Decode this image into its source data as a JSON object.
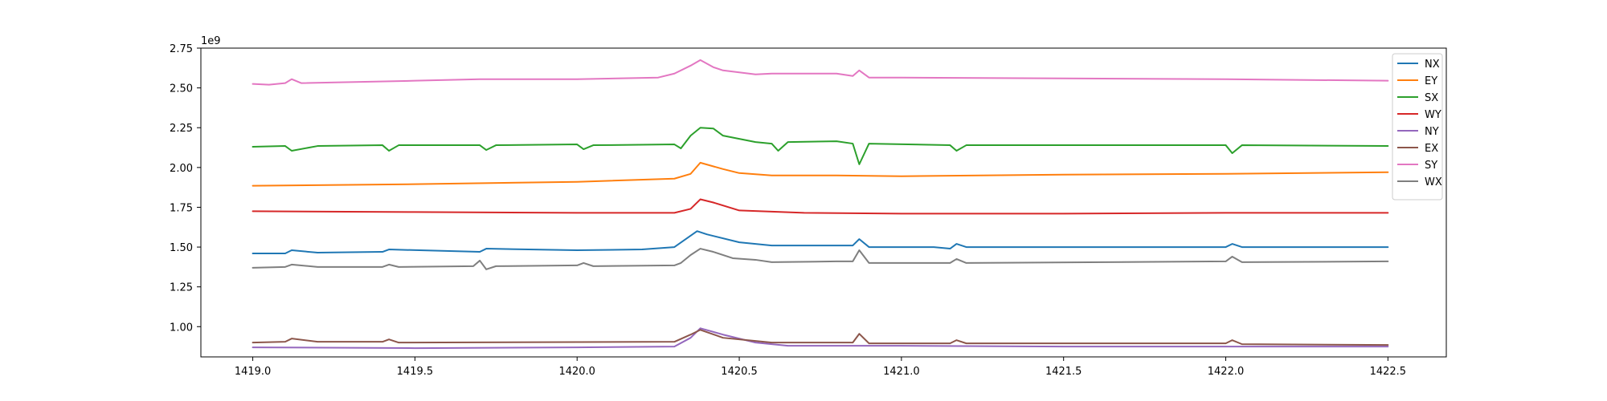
{
  "chart_data": {
    "type": "line",
    "title": "",
    "xlabel": "",
    "ylabel": "",
    "y_offset_label": "1e9",
    "xlim": [
      1418.84,
      1422.68
    ],
    "ylim": [
      0.81,
      2.75
    ],
    "xticks": [
      1419.0,
      1419.5,
      1420.0,
      1420.5,
      1421.0,
      1421.5,
      1422.0,
      1422.5
    ],
    "xtick_labels": [
      "1419.0",
      "1419.5",
      "1420.0",
      "1420.5",
      "1421.0",
      "1421.5",
      "1422.0",
      "1422.5"
    ],
    "yticks": [
      1.0,
      1.25,
      1.5,
      1.75,
      2.0,
      2.25,
      2.5,
      2.75
    ],
    "ytick_labels": [
      "1.00",
      "1.25",
      "1.50",
      "1.75",
      "2.00",
      "2.25",
      "2.50",
      "2.75"
    ],
    "grid": false,
    "legend_position": "top-right",
    "series": [
      {
        "name": "NX",
        "color": "#1f77b4",
        "x": [
          1419.0,
          1419.1,
          1419.12,
          1419.2,
          1419.4,
          1419.42,
          1419.7,
          1419.72,
          1420.0,
          1420.2,
          1420.3,
          1420.37,
          1420.4,
          1420.5,
          1420.55,
          1420.6,
          1420.8,
          1420.85,
          1420.87,
          1420.9,
          1421.1,
          1421.15,
          1421.17,
          1421.2,
          1421.5,
          1422.0,
          1422.02,
          1422.05,
          1422.5
        ],
        "y": [
          1.46,
          1.46,
          1.48,
          1.465,
          1.47,
          1.485,
          1.47,
          1.49,
          1.48,
          1.485,
          1.5,
          1.6,
          1.58,
          1.53,
          1.52,
          1.51,
          1.51,
          1.51,
          1.55,
          1.5,
          1.5,
          1.49,
          1.52,
          1.5,
          1.5,
          1.5,
          1.52,
          1.5,
          1.5
        ]
      },
      {
        "name": "EY",
        "color": "#ff7f0e",
        "x": [
          1419.0,
          1419.5,
          1420.0,
          1420.3,
          1420.35,
          1420.38,
          1420.45,
          1420.5,
          1420.6,
          1420.8,
          1421.0,
          1421.5,
          1422.0,
          1422.5
        ],
        "y": [
          1.885,
          1.895,
          1.91,
          1.93,
          1.96,
          2.03,
          1.99,
          1.965,
          1.95,
          1.95,
          1.945,
          1.955,
          1.96,
          1.97
        ]
      },
      {
        "name": "SX",
        "color": "#2ca02c",
        "x": [
          1419.0,
          1419.1,
          1419.12,
          1419.2,
          1419.4,
          1419.42,
          1419.45,
          1419.7,
          1419.72,
          1419.75,
          1420.0,
          1420.02,
          1420.05,
          1420.3,
          1420.32,
          1420.35,
          1420.38,
          1420.42,
          1420.45,
          1420.55,
          1420.6,
          1420.62,
          1420.65,
          1420.8,
          1420.85,
          1420.87,
          1420.9,
          1421.15,
          1421.17,
          1421.2,
          1421.5,
          1422.0,
          1422.02,
          1422.05,
          1422.5
        ],
        "y": [
          2.13,
          2.135,
          2.105,
          2.135,
          2.14,
          2.105,
          2.14,
          2.14,
          2.11,
          2.14,
          2.145,
          2.115,
          2.14,
          2.145,
          2.12,
          2.2,
          2.25,
          2.245,
          2.2,
          2.16,
          2.15,
          2.105,
          2.16,
          2.165,
          2.15,
          2.02,
          2.15,
          2.14,
          2.105,
          2.14,
          2.14,
          2.14,
          2.09,
          2.14,
          2.135
        ]
      },
      {
        "name": "WY",
        "color": "#d62728",
        "x": [
          1419.0,
          1419.5,
          1420.0,
          1420.3,
          1420.35,
          1420.38,
          1420.42,
          1420.5,
          1420.7,
          1421.0,
          1421.5,
          1422.0,
          1422.5
        ],
        "y": [
          1.725,
          1.72,
          1.715,
          1.715,
          1.74,
          1.8,
          1.78,
          1.73,
          1.715,
          1.71,
          1.71,
          1.715,
          1.715
        ]
      },
      {
        "name": "NY",
        "color": "#9467bd",
        "x": [
          1419.0,
          1419.5,
          1420.0,
          1420.3,
          1420.35,
          1420.38,
          1420.45,
          1420.55,
          1420.65,
          1420.8,
          1421.0,
          1421.5,
          1422.0,
          1422.5
        ],
        "y": [
          0.87,
          0.865,
          0.87,
          0.875,
          0.93,
          0.99,
          0.95,
          0.9,
          0.88,
          0.88,
          0.88,
          0.875,
          0.875,
          0.875
        ]
      },
      {
        "name": "EX",
        "color": "#8c564b",
        "x": [
          1419.0,
          1419.1,
          1419.12,
          1419.2,
          1419.4,
          1419.42,
          1419.45,
          1420.3,
          1420.35,
          1420.38,
          1420.45,
          1420.55,
          1420.6,
          1420.85,
          1420.87,
          1420.9,
          1421.15,
          1421.17,
          1421.2,
          1422.0,
          1422.02,
          1422.05,
          1422.5
        ],
        "y": [
          0.9,
          0.905,
          0.925,
          0.905,
          0.905,
          0.92,
          0.9,
          0.905,
          0.95,
          0.98,
          0.93,
          0.91,
          0.9,
          0.9,
          0.955,
          0.895,
          0.895,
          0.915,
          0.895,
          0.895,
          0.915,
          0.89,
          0.885
        ]
      },
      {
        "name": "SY",
        "color": "#e377c2",
        "x": [
          1419.0,
          1419.05,
          1419.1,
          1419.12,
          1419.15,
          1419.5,
          1419.7,
          1420.0,
          1420.25,
          1420.3,
          1420.35,
          1420.38,
          1420.42,
          1420.45,
          1420.55,
          1420.6,
          1420.8,
          1420.85,
          1420.87,
          1420.9,
          1421.0,
          1421.5,
          1422.0,
          1422.5
        ],
        "y": [
          2.525,
          2.52,
          2.53,
          2.555,
          2.53,
          2.545,
          2.555,
          2.555,
          2.565,
          2.59,
          2.64,
          2.675,
          2.63,
          2.61,
          2.585,
          2.59,
          2.59,
          2.575,
          2.61,
          2.565,
          2.565,
          2.56,
          2.555,
          2.545
        ]
      },
      {
        "name": "WX",
        "color": "#7f7f7f",
        "x": [
          1419.0,
          1419.1,
          1419.12,
          1419.2,
          1419.4,
          1419.42,
          1419.45,
          1419.68,
          1419.7,
          1419.72,
          1419.75,
          1420.0,
          1420.02,
          1420.05,
          1420.3,
          1420.32,
          1420.35,
          1420.38,
          1420.42,
          1420.48,
          1420.55,
          1420.6,
          1420.8,
          1420.85,
          1420.87,
          1420.9,
          1421.15,
          1421.17,
          1421.2,
          1422.0,
          1422.02,
          1422.05,
          1422.5
        ],
        "y": [
          1.37,
          1.375,
          1.39,
          1.375,
          1.375,
          1.39,
          1.375,
          1.38,
          1.415,
          1.36,
          1.38,
          1.385,
          1.4,
          1.38,
          1.385,
          1.4,
          1.45,
          1.49,
          1.47,
          1.43,
          1.42,
          1.405,
          1.41,
          1.41,
          1.48,
          1.4,
          1.4,
          1.425,
          1.4,
          1.41,
          1.44,
          1.405,
          1.41
        ]
      }
    ]
  }
}
